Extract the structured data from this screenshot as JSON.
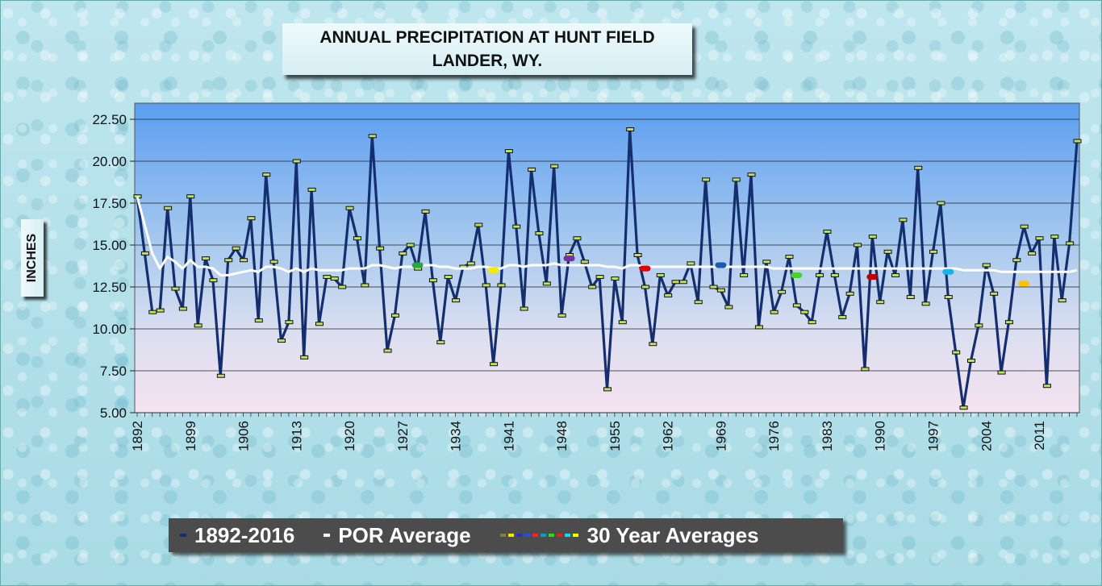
{
  "chart_data": {
    "type": "line",
    "title": "ANNUAL PRECIPITATION AT HUNT FIELD",
    "subtitle": "LANDER, WY.",
    "ylabel": "INCHES",
    "xlabel": "",
    "ylim": [
      5.0,
      22.5
    ],
    "yticks": [
      "22.50",
      "20.00",
      "17.50",
      "15.00",
      "12.50",
      "10.00",
      "7.50",
      "5.00"
    ],
    "xticks": [
      "1892",
      "1899",
      "1906",
      "1913",
      "1920",
      "1927",
      "1934",
      "1941",
      "1948",
      "1955",
      "1962",
      "1969",
      "1976",
      "1983",
      "1990",
      "1997",
      "2004",
      "2011"
    ],
    "grid": true,
    "legend_position": "bottom",
    "x": [
      1892,
      1893,
      1894,
      1895,
      1896,
      1897,
      1898,
      1899,
      1900,
      1901,
      1902,
      1903,
      1904,
      1905,
      1906,
      1907,
      1908,
      1909,
      1910,
      1911,
      1912,
      1913,
      1914,
      1915,
      1916,
      1917,
      1918,
      1919,
      1920,
      1921,
      1922,
      1923,
      1924,
      1925,
      1926,
      1927,
      1928,
      1929,
      1930,
      1931,
      1932,
      1933,
      1934,
      1935,
      1936,
      1937,
      1938,
      1939,
      1940,
      1941,
      1942,
      1943,
      1944,
      1945,
      1946,
      1947,
      1948,
      1949,
      1950,
      1951,
      1952,
      1953,
      1954,
      1955,
      1956,
      1957,
      1958,
      1959,
      1960,
      1961,
      1962,
      1963,
      1964,
      1965,
      1966,
      1967,
      1968,
      1969,
      1970,
      1971,
      1972,
      1973,
      1974,
      1975,
      1976,
      1977,
      1978,
      1979,
      1980,
      1981,
      1982,
      1983,
      1984,
      1985,
      1986,
      1987,
      1988,
      1989,
      1990,
      1991,
      1992,
      1993,
      1994,
      1995,
      1996,
      1997,
      1998,
      1999,
      2000,
      2001,
      2002,
      2003,
      2004,
      2005,
      2006,
      2007,
      2008,
      2009,
      2010,
      2011,
      2012,
      2013,
      2014,
      2015,
      2016
    ],
    "series": [
      {
        "name": "1892-2016",
        "color": "#142e6e",
        "values": [
          17.9,
          14.5,
          11.0,
          11.1,
          17.2,
          12.4,
          11.2,
          17.9,
          10.2,
          14.2,
          12.9,
          7.2,
          14.1,
          14.8,
          14.1,
          16.6,
          10.5,
          19.2,
          14.0,
          9.3,
          10.4,
          20.0,
          8.3,
          18.3,
          10.3,
          13.1,
          13.0,
          12.5,
          17.2,
          15.4,
          12.6,
          21.5,
          14.8,
          8.7,
          10.8,
          14.5,
          15.0,
          13.6,
          17.0,
          12.9,
          9.2,
          13.1,
          11.7,
          13.7,
          13.9,
          16.2,
          12.6,
          7.9,
          12.6,
          20.6,
          16.1,
          11.2,
          19.5,
          15.7,
          12.7,
          19.7,
          10.8,
          14.4,
          15.4,
          14.0,
          12.5,
          13.1,
          6.4,
          13.0,
          10.4,
          21.9,
          14.4,
          12.5,
          9.1,
          13.2,
          12.0,
          12.8,
          12.8,
          13.9,
          11.6,
          18.9,
          12.5,
          12.3,
          11.3,
          18.9,
          13.2,
          19.2,
          10.1,
          14.0,
          11.0,
          12.2,
          14.3,
          11.4,
          11.0,
          10.4,
          13.2,
          15.8,
          13.2,
          10.7,
          12.1,
          15.0,
          7.6,
          15.5,
          11.6,
          14.6,
          13.2,
          16.5,
          11.9,
          19.6,
          11.5,
          14.6,
          17.5,
          11.9,
          8.6,
          5.3,
          8.1,
          10.2,
          13.8,
          12.1,
          7.4,
          10.4,
          14.1,
          16.1,
          14.5,
          15.4,
          6.6,
          15.5,
          11.7,
          15.1,
          21.2
        ]
      },
      {
        "name": "POR Average",
        "color": "#ffffff",
        "values": [
          17.9,
          16.2,
          14.5,
          13.6,
          14.3,
          14.0,
          13.6,
          14.1,
          13.7,
          13.7,
          13.6,
          13.2,
          13.2,
          13.3,
          13.4,
          13.5,
          13.4,
          13.7,
          13.7,
          13.6,
          13.4,
          13.6,
          13.4,
          13.6,
          13.5,
          13.5,
          13.5,
          13.5,
          13.6,
          13.6,
          13.6,
          13.8,
          13.8,
          13.7,
          13.6,
          13.7,
          13.7,
          13.7,
          13.8,
          13.8,
          13.7,
          13.7,
          13.6,
          13.6,
          13.6,
          13.7,
          13.7,
          13.6,
          13.6,
          13.8,
          13.8,
          13.7,
          13.8,
          13.8,
          13.8,
          13.9,
          13.8,
          13.8,
          13.8,
          13.8,
          13.8,
          13.8,
          13.7,
          13.7,
          13.6,
          13.8,
          13.8,
          13.7,
          13.7,
          13.7,
          13.7,
          13.7,
          13.7,
          13.7,
          13.7,
          13.7,
          13.7,
          13.7,
          13.7,
          13.7,
          13.7,
          13.7,
          13.7,
          13.7,
          13.6,
          13.6,
          13.6,
          13.6,
          13.6,
          13.6,
          13.6,
          13.6,
          13.6,
          13.6,
          13.6,
          13.6,
          13.6,
          13.6,
          13.6,
          13.6,
          13.6,
          13.6,
          13.6,
          13.6,
          13.6,
          13.6,
          13.6,
          13.6,
          13.6,
          13.5,
          13.5,
          13.5,
          13.5,
          13.5,
          13.4,
          13.4,
          13.4,
          13.4,
          13.4,
          13.4,
          13.4,
          13.4,
          13.4,
          13.4,
          13.5
        ]
      }
    ],
    "thirty_year_averages": {
      "name": "30 Year Averages",
      "points": [
        {
          "year": 1929,
          "value": 13.8,
          "color": "#27a844"
        },
        {
          "year": 1939,
          "value": 13.5,
          "color": "#f5ea00"
        },
        {
          "year": 1949,
          "value": 14.2,
          "color": "#7a2fa0"
        },
        {
          "year": 1959,
          "value": 13.6,
          "color": "#e00000"
        },
        {
          "year": 1969,
          "value": 13.8,
          "color": "#1a5ab0"
        },
        {
          "year": 1979,
          "value": 13.2,
          "color": "#49d22a"
        },
        {
          "year": 1989,
          "value": 13.1,
          "color": "#c00000"
        },
        {
          "year": 1999,
          "value": 13.4,
          "color": "#1ab2e8"
        },
        {
          "year": 2009,
          "value": 12.7,
          "color": "#ffc000"
        }
      ]
    }
  },
  "legend": {
    "items": [
      {
        "label": "1892-2016",
        "color": "#142e6e"
      },
      {
        "label": "POR Average",
        "color": "#ffffff"
      }
    ],
    "thirty_year_label": "30 Year Averages",
    "dash_colors": [
      "#808040",
      "#e8e800",
      "#3030c0",
      "#2050e0",
      "#ff2020",
      "#0a9cc0",
      "#20e020",
      "#e02020",
      "#20d0f0",
      "#ffff00"
    ]
  }
}
